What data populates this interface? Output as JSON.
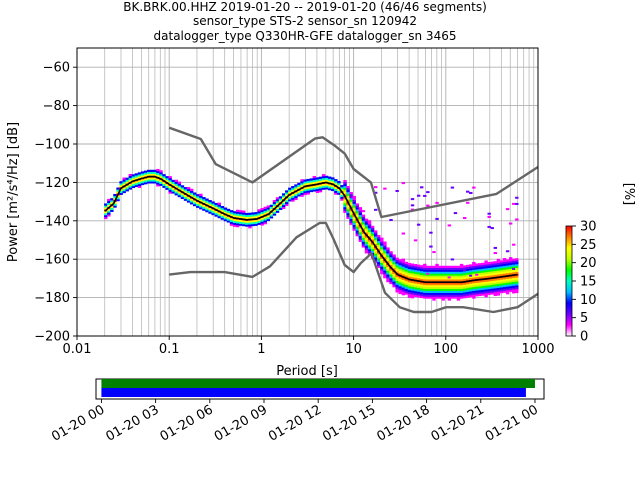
{
  "chart_data": [
    {
      "type": "heatmap",
      "title_lines": [
        "BK.BRK.00.HHZ   2019-01-20 -- 2019-01-20  (46/46 segments)",
        "sensor_type STS-2 sensor_sn 120942",
        "datalogger_type Q330HR-GFE datalogger_sn 3465"
      ],
      "xlabel": "Period [s]",
      "ylabel": "Power [m²/s⁴/Hz] [dB]",
      "xscale": "log",
      "xlim": [
        0.01,
        1000
      ],
      "ylim": [
        -200,
        -50
      ],
      "x_ticks": [
        {
          "value": 0.01,
          "label": "0.01"
        },
        {
          "value": 0.1,
          "label": "0.1"
        },
        {
          "value": 1,
          "label": "1"
        },
        {
          "value": 10,
          "label": "10"
        },
        {
          "value": 100,
          "label": "100"
        },
        {
          "value": 1000,
          "label": "1000"
        }
      ],
      "y_ticks": [
        {
          "value": -200,
          "label": "−200"
        },
        {
          "value": -180,
          "label": "−180"
        },
        {
          "value": -160,
          "label": "−160"
        },
        {
          "value": -140,
          "label": "−140"
        },
        {
          "value": -120,
          "label": "−120"
        },
        {
          "value": -100,
          "label": "−100"
        },
        {
          "value": -80,
          "label": "−80"
        },
        {
          "value": -60,
          "label": "−60"
        }
      ],
      "grid": true,
      "colorbar": {
        "label": "[%]",
        "range": [
          0,
          30
        ],
        "ticks": [
          {
            "value": 0,
            "label": "0"
          },
          {
            "value": 5,
            "label": "5"
          },
          {
            "value": 10,
            "label": "10"
          },
          {
            "value": 15,
            "label": "15"
          },
          {
            "value": 20,
            "label": "20"
          },
          {
            "value": 25,
            "label": "25"
          },
          {
            "value": 30,
            "label": "30"
          }
        ],
        "colormap": [
          "#ffffff",
          "#ff00ff",
          "#6a00ff",
          "#0000ff",
          "#00bfff",
          "#00ffbf",
          "#00ff00",
          "#bfff00",
          "#ffff00",
          "#ff8000",
          "#ff0000"
        ]
      },
      "series": [
        {
          "role": "high-noise-model",
          "color": "#666666",
          "points": [
            [
              0.1,
              -91.5
            ],
            [
              0.22,
              -97.4
            ],
            [
              0.32,
              -110.5
            ],
            [
              0.8,
              -120
            ],
            [
              3.8,
              -97.2
            ],
            [
              4.6,
              -96.5
            ],
            [
              6.3,
              -101
            ],
            [
              8,
              -105
            ],
            [
              10,
              -113
            ],
            [
              15.4,
              -120
            ],
            [
              20,
              -138
            ],
            [
              354.8,
              -126
            ],
            [
              1000,
              -112
            ]
          ]
        },
        {
          "role": "low-noise-model",
          "color": "#666666",
          "points": [
            [
              0.1,
              -168
            ],
            [
              0.17,
              -166.7
            ],
            [
              0.4,
              -166.7
            ],
            [
              0.8,
              -169.2
            ],
            [
              1.24,
              -163.7
            ],
            [
              2.4,
              -148.6
            ],
            [
              4.3,
              -141.1
            ],
            [
              5,
              -141.1
            ],
            [
              6,
              -149
            ],
            [
              8,
              -163
            ],
            [
              10,
              -166.7
            ],
            [
              12,
              -162
            ],
            [
              15.6,
              -157
            ],
            [
              21.9,
              -177.5
            ],
            [
              31.6,
              -185
            ],
            [
              45,
              -187.5
            ],
            [
              70,
              -187.5
            ],
            [
              101,
              -185
            ],
            [
              154,
              -185
            ],
            [
              328,
              -187.5
            ],
            [
              600,
              -185
            ],
            [
              1000,
              -178
            ]
          ]
        },
        {
          "role": "mean",
          "color": "#000000",
          "points": [
            [
              0.02,
              -135
            ],
            [
              0.025,
              -131
            ],
            [
              0.03,
              -123
            ],
            [
              0.04,
              -119.5
            ],
            [
              0.05,
              -118
            ],
            [
              0.06,
              -117
            ],
            [
              0.07,
              -117
            ],
            [
              0.08,
              -118
            ],
            [
              0.1,
              -121
            ],
            [
              0.15,
              -126
            ],
            [
              0.2,
              -129.5
            ],
            [
              0.3,
              -133.5
            ],
            [
              0.4,
              -136.5
            ],
            [
              0.5,
              -138.5
            ],
            [
              0.7,
              -139.5
            ],
            [
              0.9,
              -139
            ],
            [
              1.2,
              -136.5
            ],
            [
              1.6,
              -131
            ],
            [
              2,
              -126.5
            ],
            [
              3,
              -122
            ],
            [
              4,
              -121
            ],
            [
              5,
              -120
            ],
            [
              6,
              -121
            ],
            [
              7,
              -123
            ],
            [
              8,
              -127
            ],
            [
              10,
              -136
            ],
            [
              13,
              -146
            ],
            [
              16,
              -151
            ],
            [
              20,
              -158
            ],
            [
              25,
              -164
            ],
            [
              30,
              -168
            ],
            [
              40,
              -170.5
            ],
            [
              60,
              -172
            ],
            [
              100,
              -172
            ],
            [
              150,
              -172
            ],
            [
              200,
              -171
            ],
            [
              300,
              -170
            ],
            [
              600,
              -168
            ]
          ]
        }
      ],
      "heat_band": {
        "x_range": [
          0.019,
          800
        ],
        "scatter_min_db": -180,
        "scatter_max_db": -120
      }
    },
    {
      "type": "timeline",
      "x_ticks": [
        "01-20 00",
        "01-20 03",
        "01-20 06",
        "01-20 09",
        "01-20 12",
        "01-20 15",
        "01-20 18",
        "01-20 21",
        "01-21 00"
      ],
      "xlim_hours": [
        -0.3,
        24.5
      ],
      "bars": [
        {
          "color": "#008000",
          "start_hours": 0,
          "end_hours": 24
        },
        {
          "color": "#0000ff",
          "start_hours": 0,
          "end_hours": 23.5
        }
      ]
    }
  ]
}
